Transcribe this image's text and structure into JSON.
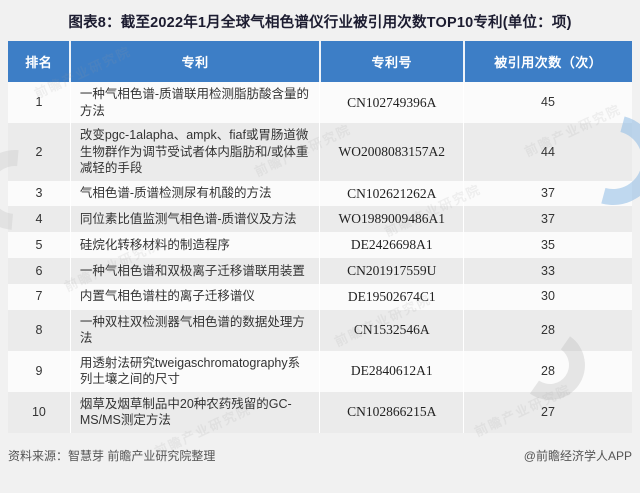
{
  "title": "图表8：截至2022年1月全球气相色谱仪行业被引用次数TOP10专利(单位：项)",
  "colors": {
    "header_bg": "#3d7ec6",
    "header_text": "#ffffff",
    "row_bg": "#fbfbfb",
    "row_alt_bg": "#ebebeb",
    "page_bg": "#f1f1f1",
    "title_text": "#1c1c30"
  },
  "table": {
    "headers": [
      "排名",
      "专利",
      "专利号",
      "被引用次数（次）"
    ],
    "rows": [
      {
        "rank": "1",
        "patent": "一种气相色谱-质谱联用检测脂肪酸含量的方法",
        "number": "CN102749396A",
        "citations": "45"
      },
      {
        "rank": "2",
        "patent": "改变pgc-1alapha、ampk、fiaf或胃肠道微生物群作为调节受试者体内脂肪和/或体重减轻的手段",
        "number": "WO2008083157A2",
        "citations": "44"
      },
      {
        "rank": "3",
        "patent": "气相色谱-质谱检测尿有机酸的方法",
        "number": "CN102621262A",
        "citations": "37"
      },
      {
        "rank": "4",
        "patent": "同位素比值监测气相色谱-质谱仪及方法",
        "number": "WO1989009486A1",
        "citations": "37"
      },
      {
        "rank": "5",
        "patent": "硅烷化转移材料的制造程序",
        "number": "DE2426698A1",
        "citations": "35"
      },
      {
        "rank": "6",
        "patent": "一种气相色谱和双极离子迁移谱联用装置",
        "number": "CN201917559U",
        "citations": "33"
      },
      {
        "rank": "7",
        "patent": "内置气相色谱柱的离子迁移谱仪",
        "number": "DE19502674C1",
        "citations": "30"
      },
      {
        "rank": "8",
        "patent": "一种双柱双检测器气相色谱的数据处理方法",
        "number": "CN1532546A",
        "citations": "28"
      },
      {
        "rank": "9",
        "patent": "用透射法研究tweigaschromatography系列土壤之间的尺寸",
        "number": "DE2840612A1",
        "citations": "28"
      },
      {
        "rank": "10",
        "patent": "烟草及烟草制品中20种农药残留的GC-MS/MS测定方法",
        "number": "CN102866215A",
        "citations": "27"
      }
    ]
  },
  "footer": {
    "source": "资料来源：智慧芽 前瞻产业研究院整理",
    "credit": "@前瞻经济学人APP"
  },
  "watermark": {
    "text": "前瞻产业研究院"
  },
  "chart_data": {
    "type": "table",
    "title": "图表8：截至2022年1月全球气相色谱仪行业被引用次数TOP10专利(单位：项)",
    "columns": [
      "排名",
      "专利",
      "专利号",
      "被引用次数（次）"
    ],
    "rows": [
      [
        1,
        "一种气相色谱-质谱联用检测脂肪酸含量的方法",
        "CN102749396A",
        45
      ],
      [
        2,
        "改变pgc-1alapha、ampk、fiaf或胃肠道微生物群作为调节受试者体内脂肪和/或体重减轻的手段",
        "WO2008083157A2",
        44
      ],
      [
        3,
        "气相色谱-质谱检测尿有机酸的方法",
        "CN102621262A",
        37
      ],
      [
        4,
        "同位素比值监测气相色谱-质谱仪及方法",
        "WO1989009486A1",
        37
      ],
      [
        5,
        "硅烷化转移材料的制造程序",
        "DE2426698A1",
        35
      ],
      [
        6,
        "一种气相色谱和双极离子迁移谱联用装置",
        "CN201917559U",
        33
      ],
      [
        7,
        "内置气相色谱柱的离子迁移谱仪",
        "DE19502674C1",
        30
      ],
      [
        8,
        "一种双柱双检测器气相色谱的数据处理方法",
        "CN1532546A",
        28
      ],
      [
        9,
        "用透射法研究tweigaschromatography系列土壤之间的尺寸",
        "DE2840612A1",
        28
      ],
      [
        10,
        "烟草及烟草制品中20种农药残留的GC-MS/MS测定方法",
        "CN102866215A",
        27
      ]
    ]
  }
}
